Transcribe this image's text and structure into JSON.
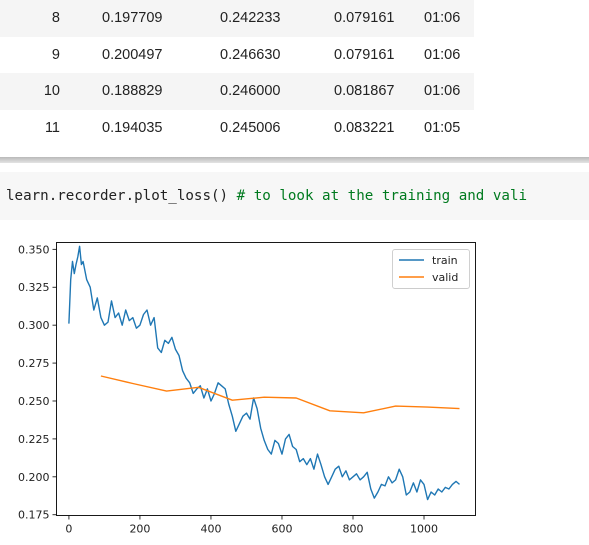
{
  "results_table": {
    "rows": [
      {
        "epoch": "8",
        "train_loss": "0.197709",
        "valid_loss": "0.242233",
        "metric": "0.079161",
        "time": "01:06"
      },
      {
        "epoch": "9",
        "train_loss": "0.200497",
        "valid_loss": "0.246630",
        "metric": "0.079161",
        "time": "01:06"
      },
      {
        "epoch": "10",
        "train_loss": "0.188829",
        "valid_loss": "0.246000",
        "metric": "0.081867",
        "time": "01:06"
      },
      {
        "epoch": "11",
        "train_loss": "0.194035",
        "valid_loss": "0.245006",
        "metric": "0.083221",
        "time": "01:05"
      }
    ]
  },
  "code_cell": {
    "code": "learn.recorder.plot_loss() ",
    "comment": "# to look at the training and vali"
  },
  "chart_data": {
    "type": "line",
    "xlim": [
      -35,
      1145
    ],
    "ylim": [
      0.1745,
      0.3545
    ],
    "x_ticks": [
      0,
      200,
      400,
      600,
      800,
      1000
    ],
    "x_tick_labels": [
      "0",
      "200",
      "400",
      "600",
      "800",
      "1000"
    ],
    "y_ticks": [
      0.175,
      0.2,
      0.225,
      0.25,
      0.275,
      0.3,
      0.325,
      0.35
    ],
    "y_tick_labels": [
      "0.175",
      "0.200",
      "0.225",
      "0.250",
      "0.275",
      "0.300",
      "0.325",
      "0.350"
    ],
    "legend_position": "top-right",
    "series": [
      {
        "name": "train",
        "color": "#1f77b4",
        "x": [
          0,
          5,
          10,
          15,
          20,
          25,
          30,
          35,
          40,
          50,
          60,
          70,
          80,
          90,
          100,
          110,
          120,
          130,
          140,
          150,
          160,
          170,
          180,
          190,
          200,
          210,
          220,
          230,
          240,
          250,
          260,
          270,
          280,
          290,
          300,
          310,
          320,
          330,
          340,
          350,
          360,
          370,
          380,
          390,
          400,
          410,
          420,
          430,
          440,
          450,
          460,
          470,
          480,
          490,
          500,
          510,
          520,
          530,
          540,
          550,
          560,
          570,
          580,
          590,
          600,
          610,
          620,
          630,
          640,
          650,
          660,
          670,
          680,
          690,
          700,
          710,
          720,
          730,
          740,
          750,
          760,
          770,
          780,
          790,
          800,
          810,
          820,
          830,
          840,
          850,
          860,
          870,
          880,
          890,
          900,
          910,
          920,
          930,
          940,
          950,
          960,
          970,
          980,
          990,
          1000,
          1010,
          1020,
          1030,
          1040,
          1050,
          1060,
          1070,
          1080,
          1090,
          1100
        ],
        "y": [
          0.301,
          0.33,
          0.342,
          0.334,
          0.34,
          0.345,
          0.352,
          0.34,
          0.342,
          0.33,
          0.325,
          0.31,
          0.318,
          0.305,
          0.3,
          0.302,
          0.316,
          0.305,
          0.308,
          0.3,
          0.31,
          0.303,
          0.305,
          0.298,
          0.3,
          0.307,
          0.31,
          0.3,
          0.305,
          0.285,
          0.282,
          0.29,
          0.288,
          0.292,
          0.284,
          0.28,
          0.27,
          0.265,
          0.262,
          0.255,
          0.258,
          0.26,
          0.252,
          0.258,
          0.25,
          0.255,
          0.262,
          0.26,
          0.258,
          0.248,
          0.24,
          0.23,
          0.235,
          0.24,
          0.242,
          0.238,
          0.252,
          0.245,
          0.232,
          0.224,
          0.218,
          0.215,
          0.224,
          0.222,
          0.215,
          0.225,
          0.228,
          0.22,
          0.218,
          0.21,
          0.212,
          0.208,
          0.212,
          0.205,
          0.215,
          0.208,
          0.2,
          0.195,
          0.2,
          0.205,
          0.207,
          0.2,
          0.204,
          0.198,
          0.2,
          0.202,
          0.198,
          0.2,
          0.203,
          0.192,
          0.186,
          0.19,
          0.195,
          0.194,
          0.2,
          0.196,
          0.198,
          0.205,
          0.2,
          0.188,
          0.19,
          0.196,
          0.19,
          0.198,
          0.195,
          0.185,
          0.19,
          0.188,
          0.192,
          0.19,
          0.193,
          0.192,
          0.195,
          0.197,
          0.195
        ]
      },
      {
        "name": "valid",
        "color": "#ff7f0e",
        "x": [
          90,
          180,
          275,
          365,
          460,
          550,
          640,
          735,
          830,
          920,
          1010,
          1100
        ],
        "y": [
          0.2665,
          0.2615,
          0.2565,
          0.259,
          0.2505,
          0.2525,
          0.252,
          0.2435,
          0.2422,
          0.2466,
          0.246,
          0.245
        ]
      }
    ]
  }
}
